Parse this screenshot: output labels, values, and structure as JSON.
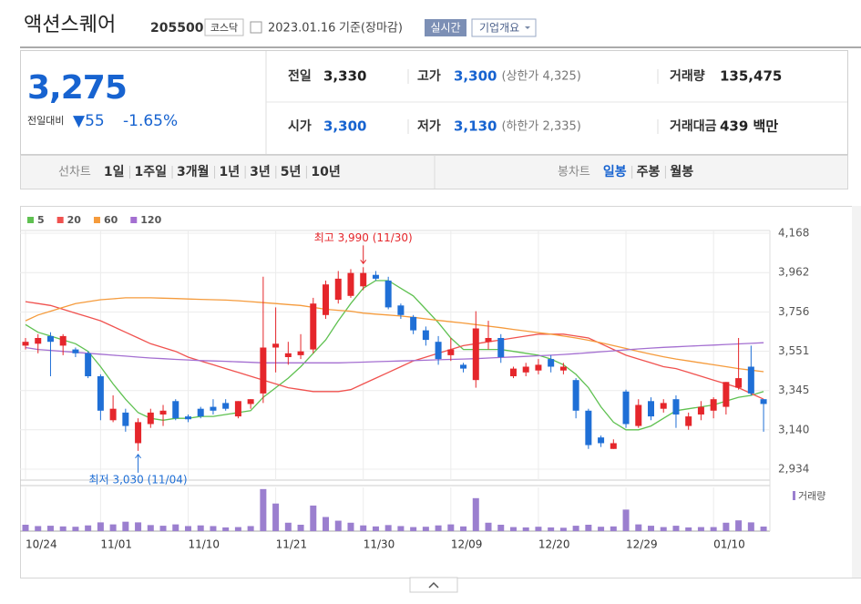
{
  "header": {
    "name": "액션스퀘어",
    "code": "205500",
    "market": "코스닥",
    "date": "2023.01.16",
    "basis": "기준(장마감)",
    "realtime": "실시간",
    "company_info": "기업개요"
  },
  "quote": {
    "price": "3,275",
    "change_label": "전일대비",
    "change": "▼55",
    "change_pct": "-1.65%",
    "fields": [
      {
        "label": "전일",
        "value": "3,330",
        "color": "#222222"
      },
      {
        "label": "고가",
        "value": "3,300",
        "extra": "(상한가 4,325)",
        "color": "#1763d0"
      },
      {
        "label": "거래량",
        "value": "135,475",
        "color": "#222222"
      },
      {
        "label": "시가",
        "value": "3,300",
        "color": "#1763d0"
      },
      {
        "label": "저가",
        "value": "3,130",
        "extra": "(하한가 2,335)",
        "color": "#1763d0"
      },
      {
        "label": "거래대금",
        "value": "439 백만",
        "color": "#222222"
      }
    ]
  },
  "tabs": {
    "line_label": "선차트",
    "line": [
      "1일",
      "1주일",
      "3개월",
      "1년",
      "3년",
      "5년",
      "10년"
    ],
    "candle_label": "봉차트",
    "candle": [
      "일봉",
      "주봉",
      "월봉"
    ],
    "active_candle": 0
  },
  "chart_data": {
    "type": "candlestick",
    "categories": [
      "10/24",
      null,
      null,
      null,
      null,
      null,
      "11/01",
      null,
      null,
      null,
      null,
      null,
      null,
      "11/10",
      null,
      null,
      null,
      null,
      null,
      null,
      "11/21",
      null,
      null,
      null,
      null,
      null,
      null,
      "11/30",
      null,
      null,
      null,
      null,
      null,
      null,
      "12/09",
      null,
      null,
      null,
      null,
      null,
      null,
      "12/20",
      null,
      null,
      null,
      null,
      null,
      null,
      "12/29",
      null,
      null,
      null,
      null,
      null,
      null,
      "01/10",
      null,
      null,
      null,
      null
    ],
    "open": [
      3580,
      3590,
      3630,
      3580,
      3560,
      3540,
      3420,
      3190,
      3230,
      3070,
      3170,
      3220,
      3290,
      3210,
      3250,
      3260,
      3280,
      3210,
      3275,
      3330,
      3570,
      3520,
      3530,
      3560,
      3740,
      3820,
      3840,
      3890,
      3950,
      3920,
      3790,
      3730,
      3660,
      3600,
      3530,
      3480,
      3400,
      3600,
      3620,
      3420,
      3440,
      3450,
      3510,
      3450,
      3400,
      3240,
      3100,
      3040,
      3340,
      3160,
      3290,
      3250,
      3300,
      3160,
      3220,
      3240,
      3260,
      3360,
      3470,
      3300
    ],
    "high": [
      3620,
      3640,
      3650,
      3640,
      3570,
      3550,
      3430,
      3320,
      3250,
      3200,
      3250,
      3270,
      3300,
      3220,
      3260,
      3300,
      3300,
      3290,
      3300,
      3940,
      3780,
      3600,
      3640,
      3830,
      3920,
      3970,
      3980,
      3990,
      3970,
      3940,
      3800,
      3740,
      3680,
      3630,
      3620,
      3490,
      3760,
      3710,
      3640,
      3470,
      3490,
      3510,
      3530,
      3490,
      3410,
      3250,
      3110,
      3090,
      3350,
      3300,
      3310,
      3300,
      3320,
      3230,
      3290,
      3310,
      3390,
      3620,
      3580,
      3300
    ],
    "low": [
      3560,
      3540,
      3420,
      3530,
      3520,
      3410,
      3190,
      3180,
      3130,
      3030,
      3150,
      3160,
      3190,
      3180,
      3200,
      3220,
      3240,
      3200,
      3250,
      3280,
      3440,
      3480,
      3510,
      3540,
      3720,
      3800,
      3830,
      3870,
      3920,
      3770,
      3720,
      3640,
      3580,
      3480,
      3500,
      3440,
      3360,
      3560,
      3490,
      3410,
      3420,
      3430,
      3440,
      3430,
      3200,
      3040,
      3050,
      3040,
      3150,
      3150,
      3190,
      3230,
      3150,
      3140,
      3190,
      3200,
      3220,
      3350,
      3320,
      3130
    ],
    "close": [
      3600,
      3620,
      3600,
      3630,
      3540,
      3420,
      3240,
      3250,
      3160,
      3180,
      3230,
      3240,
      3200,
      3195,
      3210,
      3240,
      3250,
      3290,
      3300,
      3570,
      3590,
      3540,
      3550,
      3800,
      3900,
      3930,
      3960,
      3960,
      3930,
      3780,
      3740,
      3660,
      3610,
      3510,
      3560,
      3460,
      3670,
      3620,
      3520,
      3460,
      3470,
      3480,
      3470,
      3470,
      3240,
      3060,
      3070,
      3070,
      3170,
      3270,
      3210,
      3280,
      3220,
      3210,
      3260,
      3300,
      3390,
      3410,
      3330,
      3275
    ],
    "up_color": "#e5262b",
    "down_color": "#1f6fd6",
    "ma": [
      {
        "name": "5",
        "color": "#5fc151",
        "values": [
          3690,
          3650,
          3630,
          3610,
          3590,
          3550,
          3470,
          3380,
          3300,
          3230,
          3200,
          3190,
          3200,
          3200,
          3210,
          3210,
          3220,
          3230,
          3240,
          3310,
          3360,
          3410,
          3470,
          3540,
          3610,
          3710,
          3800,
          3880,
          3920,
          3920,
          3880,
          3840,
          3770,
          3700,
          3620,
          3560,
          3560,
          3560,
          3560,
          3550,
          3540,
          3530,
          3510,
          3480,
          3430,
          3360,
          3260,
          3180,
          3140,
          3140,
          3160,
          3200,
          3240,
          3250,
          3260,
          3270,
          3290,
          3310,
          3320,
          3340
        ]
      },
      {
        "name": "20",
        "color": "#f0524f",
        "values": [
          3810,
          3800,
          3790,
          3770,
          3750,
          3730,
          3710,
          3680,
          3650,
          3620,
          3590,
          3570,
          3550,
          3520,
          3500,
          3480,
          3460,
          3440,
          3420,
          3400,
          3380,
          3360,
          3350,
          3340,
          3340,
          3340,
          3350,
          3380,
          3410,
          3440,
          3470,
          3500,
          3520,
          3540,
          3560,
          3580,
          3590,
          3600,
          3610,
          3620,
          3630,
          3640,
          3640,
          3640,
          3630,
          3620,
          3590,
          3560,
          3530,
          3510,
          3490,
          3470,
          3460,
          3440,
          3420,
          3400,
          3380,
          3360,
          3330,
          3300
        ]
      },
      {
        "name": "60",
        "color": "#f59b3c",
        "values": [
          3710,
          3740,
          3760,
          3780,
          3800,
          3810,
          3820,
          3825,
          3830,
          3830,
          3830,
          3828,
          3826,
          3824,
          3822,
          3820,
          3818,
          3815,
          3810,
          3805,
          3800,
          3795,
          3790,
          3780,
          3770,
          3765,
          3760,
          3750,
          3745,
          3740,
          3735,
          3728,
          3720,
          3712,
          3705,
          3698,
          3690,
          3682,
          3674,
          3665,
          3656,
          3648,
          3640,
          3630,
          3620,
          3608,
          3595,
          3580,
          3565,
          3550,
          3535,
          3522,
          3510,
          3500,
          3490,
          3480,
          3470,
          3460,
          3452,
          3444
        ]
      },
      {
        "name": "120",
        "color": "#a46fd1",
        "values": [
          3570,
          3560,
          3555,
          3550,
          3545,
          3540,
          3535,
          3530,
          3525,
          3520,
          3515,
          3512,
          3508,
          3505,
          3502,
          3500,
          3498,
          3495,
          3493,
          3490,
          3490,
          3490,
          3490,
          3490,
          3490,
          3490,
          3492,
          3494,
          3496,
          3498,
          3500,
          3502,
          3504,
          3506,
          3508,
          3510,
          3512,
          3515,
          3518,
          3521,
          3524,
          3527,
          3530,
          3534,
          3538,
          3543,
          3548,
          3553,
          3558,
          3563,
          3567,
          3571,
          3574,
          3577,
          3580,
          3583,
          3586,
          3589,
          3592,
          3595
        ]
      }
    ],
    "volume_name": "거래량",
    "volume_color": "#9b7fcf",
    "volume": [
      190000,
      150000,
      160000,
      140000,
      130000,
      170000,
      260000,
      200000,
      280000,
      260000,
      180000,
      160000,
      200000,
      150000,
      170000,
      150000,
      110000,
      120000,
      150000,
      1250000,
      820000,
      250000,
      190000,
      760000,
      420000,
      310000,
      250000,
      170000,
      140000,
      180000,
      150000,
      120000,
      130000,
      170000,
      200000,
      140000,
      980000,
      250000,
      190000,
      120000,
      110000,
      130000,
      110000,
      100000,
      160000,
      190000,
      130000,
      140000,
      640000,
      200000,
      160000,
      120000,
      160000,
      110000,
      120000,
      120000,
      250000,
      320000,
      260000,
      135475
    ],
    "volume_ylim": [
      0,
      1300000
    ],
    "ylim": [
      2877,
      4182
    ],
    "yticks": [
      {
        "value": 2934,
        "label": "2,934"
      },
      {
        "value": 3140,
        "label": "3,140"
      },
      {
        "value": 3345,
        "label": "3,345"
      },
      {
        "value": 3551,
        "label": "3,551"
      },
      {
        "value": 3756,
        "label": "3,756"
      },
      {
        "value": 3962,
        "label": "3,962"
      },
      {
        "value": 4168,
        "label": "4,168"
      }
    ],
    "grid": true,
    "annotations": {
      "high": "최고 3,990 (11/30)",
      "low": "최저 3,030 (11/04)"
    }
  }
}
